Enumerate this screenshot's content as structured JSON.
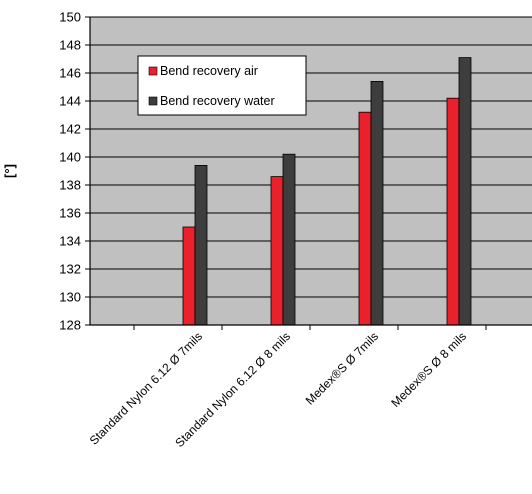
{
  "chart_data": {
    "type": "bar",
    "ylabel": "[°]",
    "xlabel": "",
    "ylim": [
      128,
      150
    ],
    "ytick_step": 2,
    "yticks": [
      "128",
      "130",
      "132",
      "134",
      "136",
      "138",
      "140",
      "142",
      "144",
      "146",
      "148",
      "150"
    ],
    "categories": [
      "Standard Nylon 6.12 Ø 7mils",
      "Standard Nylon 6.12 Ø 8 mils",
      "Medex®S Ø 7mils",
      "Medex®S Ø 8 mils"
    ],
    "series": [
      {
        "name": "Bend recovery air",
        "values": [
          135.0,
          138.6,
          143.2,
          144.2
        ]
      },
      {
        "name": "Bend recovery water",
        "values": [
          139.4,
          140.2,
          145.4,
          147.1
        ]
      }
    ],
    "colors": {
      "air": "#e8212b",
      "water": "#3d3d3d",
      "plot_bg": "#c0c0c0",
      "grid": "#000000"
    },
    "grid": true,
    "legend_position": "top-left inside plot"
  }
}
